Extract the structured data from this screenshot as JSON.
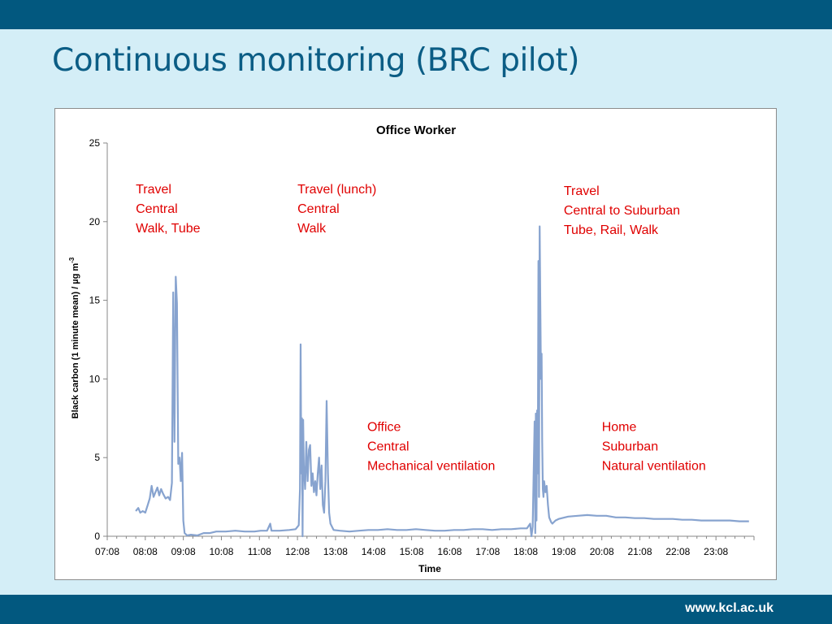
{
  "slide": {
    "title": "Continuous monitoring (BRC pilot)",
    "footer_url": "www.kcl.ac.uk"
  },
  "colors": {
    "bars": "#02587f",
    "background": "#d4eef7",
    "title": "#0b5d85",
    "series": "#87a3cf",
    "annotation": "#e00000"
  },
  "chart_data": {
    "type": "line",
    "title": "Office Worker",
    "xlabel": "Time",
    "ylabel": "Black carbon (1 minute mean) / µg m",
    "ylabel_superscript": "-3",
    "xlim": [
      "07:08",
      "24:08"
    ],
    "ylim": [
      0,
      25
    ],
    "yticks": [
      0,
      5,
      10,
      15,
      20,
      25
    ],
    "xticks": [
      "07:08",
      "08:08",
      "09:08",
      "10:08",
      "11:08",
      "12:08",
      "13:08",
      "14:08",
      "15:08",
      "16:08",
      "17:08",
      "18:08",
      "19:08",
      "20:08",
      "21:08",
      "22:08",
      "23:08"
    ],
    "grid": false,
    "legend": "none",
    "series": [
      {
        "points": [
          [
            "07:53",
            1.6
          ],
          [
            "07:57",
            1.8
          ],
          [
            "08:00",
            1.5
          ],
          [
            "08:04",
            1.6
          ],
          [
            "08:08",
            1.5
          ],
          [
            "08:12",
            2.0
          ],
          [
            "08:15",
            2.4
          ],
          [
            "08:18",
            3.2
          ],
          [
            "08:21",
            2.5
          ],
          [
            "08:24",
            2.8
          ],
          [
            "08:27",
            3.1
          ],
          [
            "08:30",
            2.6
          ],
          [
            "08:33",
            3.0
          ],
          [
            "08:36",
            2.7
          ],
          [
            "08:40",
            2.4
          ],
          [
            "08:44",
            2.5
          ],
          [
            "08:47",
            2.3
          ],
          [
            "08:50",
            3.4
          ],
          [
            "08:52",
            15.5
          ],
          [
            "08:54",
            6.0
          ],
          [
            "08:56",
            16.5
          ],
          [
            "08:58",
            14.8
          ],
          [
            "09:00",
            4.6
          ],
          [
            "09:02",
            5.0
          ],
          [
            "09:04",
            3.5
          ],
          [
            "09:06",
            5.3
          ],
          [
            "09:07",
            3.0
          ],
          [
            "09:08",
            1.0
          ],
          [
            "09:10",
            0.2
          ],
          [
            "09:14",
            0.05
          ],
          [
            "09:20",
            0.1
          ],
          [
            "09:30",
            0.05
          ],
          [
            "09:40",
            0.2
          ],
          [
            "09:50",
            0.2
          ],
          [
            "10:00",
            0.3
          ],
          [
            "10:15",
            0.3
          ],
          [
            "10:30",
            0.35
          ],
          [
            "10:45",
            0.3
          ],
          [
            "11:00",
            0.3
          ],
          [
            "11:10",
            0.35
          ],
          [
            "11:20",
            0.35
          ],
          [
            "11:25",
            0.8
          ],
          [
            "11:27",
            0.35
          ],
          [
            "11:40",
            0.35
          ],
          [
            "11:55",
            0.4
          ],
          [
            "12:05",
            0.45
          ],
          [
            "12:10",
            0.7
          ],
          [
            "12:12",
            3.0
          ],
          [
            "12:13",
            12.2
          ],
          [
            "12:14",
            4.0
          ],
          [
            "12:15",
            7.5
          ],
          [
            "12:16",
            0.0
          ],
          [
            "12:17",
            7.4
          ],
          [
            "12:18",
            4.5
          ],
          [
            "12:20",
            3.0
          ],
          [
            "12:22",
            6.0
          ],
          [
            "12:24",
            3.5
          ],
          [
            "12:26",
            5.5
          ],
          [
            "12:28",
            5.8
          ],
          [
            "12:30",
            3.2
          ],
          [
            "12:32",
            4.0
          ],
          [
            "12:34",
            2.8
          ],
          [
            "12:36",
            3.5
          ],
          [
            "12:38",
            2.6
          ],
          [
            "12:40",
            4.0
          ],
          [
            "12:42",
            5.0
          ],
          [
            "12:44",
            3.0
          ],
          [
            "12:46",
            4.5
          ],
          [
            "12:48",
            2.0
          ],
          [
            "12:50",
            1.5
          ],
          [
            "12:52",
            3.5
          ],
          [
            "12:54",
            8.6
          ],
          [
            "12:56",
            4.0
          ],
          [
            "12:58",
            1.5
          ],
          [
            "13:00",
            0.8
          ],
          [
            "13:05",
            0.4
          ],
          [
            "13:15",
            0.35
          ],
          [
            "13:30",
            0.3
          ],
          [
            "13:45",
            0.35
          ],
          [
            "14:00",
            0.4
          ],
          [
            "14:15",
            0.4
          ],
          [
            "14:30",
            0.45
          ],
          [
            "14:45",
            0.4
          ],
          [
            "15:00",
            0.4
          ],
          [
            "15:15",
            0.45
          ],
          [
            "15:30",
            0.4
          ],
          [
            "15:45",
            0.35
          ],
          [
            "16:00",
            0.35
          ],
          [
            "16:15",
            0.4
          ],
          [
            "16:30",
            0.4
          ],
          [
            "16:45",
            0.45
          ],
          [
            "17:00",
            0.45
          ],
          [
            "17:15",
            0.4
          ],
          [
            "17:30",
            0.45
          ],
          [
            "17:45",
            0.45
          ],
          [
            "18:00",
            0.5
          ],
          [
            "18:10",
            0.5
          ],
          [
            "18:15",
            0.8
          ],
          [
            "18:17",
            0.0
          ],
          [
            "18:19",
            0.6
          ],
          [
            "18:22",
            7.3
          ],
          [
            "18:23",
            0.2
          ],
          [
            "18:24",
            7.8
          ],
          [
            "18:25",
            1.0
          ],
          [
            "18:26",
            8.0
          ],
          [
            "18:27",
            4.0
          ],
          [
            "18:28",
            17.5
          ],
          [
            "18:29",
            2.5
          ],
          [
            "18:30",
            19.7
          ],
          [
            "18:32",
            10.0
          ],
          [
            "18:33",
            11.6
          ],
          [
            "18:34",
            6.0
          ],
          [
            "18:35",
            3.0
          ],
          [
            "18:36",
            2.5
          ],
          [
            "18:37",
            3.5
          ],
          [
            "18:39",
            2.8
          ],
          [
            "18:41",
            3.2
          ],
          [
            "18:43",
            2.0
          ],
          [
            "18:45",
            1.2
          ],
          [
            "18:48",
            0.9
          ],
          [
            "18:50",
            0.8
          ],
          [
            "18:55",
            1.0
          ],
          [
            "19:00",
            1.1
          ],
          [
            "19:15",
            1.25
          ],
          [
            "19:30",
            1.3
          ],
          [
            "19:45",
            1.35
          ],
          [
            "20:00",
            1.3
          ],
          [
            "20:15",
            1.3
          ],
          [
            "20:30",
            1.2
          ],
          [
            "20:45",
            1.2
          ],
          [
            "21:00",
            1.15
          ],
          [
            "21:15",
            1.15
          ],
          [
            "21:30",
            1.1
          ],
          [
            "21:45",
            1.1
          ],
          [
            "22:00",
            1.1
          ],
          [
            "22:15",
            1.05
          ],
          [
            "22:30",
            1.05
          ],
          [
            "22:45",
            1.0
          ],
          [
            "23:00",
            1.0
          ],
          [
            "23:15",
            1.0
          ],
          [
            "23:30",
            1.0
          ],
          [
            "23:45",
            0.95
          ],
          [
            "24:00",
            0.95
          ]
        ]
      }
    ],
    "annotations": [
      {
        "time": "07:53",
        "y": 21.8,
        "lines": [
          "Travel",
          "Central",
          "Walk, Tube"
        ]
      },
      {
        "time": "12:08",
        "y": 21.8,
        "lines": [
          "Travel (lunch)",
          "Central",
          "Walk"
        ]
      },
      {
        "time": "19:08",
        "y": 21.7,
        "lines": [
          "Travel",
          "Central to Suburban",
          "Tube, Rail, Walk"
        ]
      },
      {
        "time": "13:58",
        "y": 6.7,
        "lines": [
          "Office",
          "Central",
          "Mechanical ventilation"
        ]
      },
      {
        "time": "20:08",
        "y": 6.7,
        "lines": [
          "Home",
          "Suburban",
          "Natural ventilation"
        ]
      }
    ]
  }
}
